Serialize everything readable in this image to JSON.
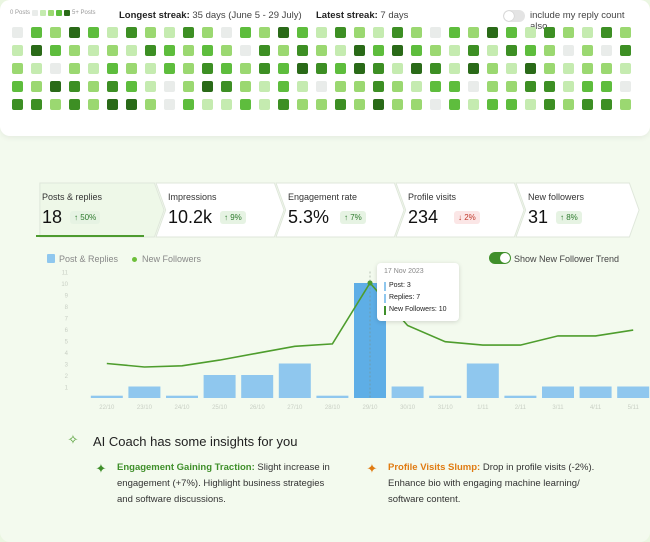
{
  "heatmap": {
    "legend_min": "0 Posts",
    "legend_max": "5+ Posts",
    "longest_label": "Longest streak:",
    "longest_value": "35 days (June 5 - 29 July)",
    "latest_label": "Latest streak:",
    "latest_value": "7 days",
    "reply_label": "include my reply count also",
    "colors": [
      "#e9ecea",
      "#c5ebb0",
      "#9bd871",
      "#5ebd3d",
      "#3d8f24",
      "#2a6a18"
    ]
  },
  "stats": [
    {
      "label": "Posts & replies",
      "value": "18",
      "change": "↑ 50%",
      "trend": "up"
    },
    {
      "label": "Impressions",
      "value": "10.2k",
      "change": "↑ 9%",
      "trend": "up"
    },
    {
      "label": "Engagement  rate",
      "value": "5.3%",
      "change": "↑ 7%",
      "trend": "up"
    },
    {
      "label": "Profile visits",
      "value": "234",
      "change": "↓ 2%",
      "trend": "down"
    },
    {
      "label": "New followers",
      "value": "31",
      "change": "↑ 8%",
      "trend": "up"
    }
  ],
  "chart_legend": {
    "bars": "Post & Replies",
    "line": "New Followers",
    "trend_toggle": "Show New Follower Trend"
  },
  "chart_data": {
    "type": "bar",
    "ylim": [
      0,
      11
    ],
    "y_ticks": [
      "1",
      "2",
      "3",
      "4",
      "5",
      "6",
      "7",
      "8",
      "9",
      "10",
      "11"
    ],
    "categories": [
      "22/10",
      "23/10",
      "24/10",
      "25/10",
      "26/10",
      "27/10",
      "28/10",
      "29/10",
      "30/10",
      "31/10",
      "1/11",
      "2/11",
      "3/11",
      "4/11",
      "5/11"
    ],
    "series": [
      {
        "name": "Post & Replies",
        "type": "bar",
        "values": [
          0.2,
          1,
          0.2,
          2,
          2,
          3,
          0.2,
          10,
          1,
          0.2,
          3,
          0.2,
          1,
          1,
          1
        ]
      },
      {
        "name": "New Followers",
        "type": "line",
        "values": [
          3,
          2.7,
          2.8,
          3.3,
          3.9,
          4.5,
          4.7,
          10,
          6.3,
          4.9,
          4.6,
          4.6,
          5.4,
          5.4,
          5.9
        ]
      }
    ],
    "colors": {
      "bar": "#8fc7ee",
      "line": "#4e9d2d",
      "highlight_bar": "#5eaee6"
    }
  },
  "tooltip": {
    "date": "17 Nov 2023",
    "post": "Post: 3",
    "replies": "Replies: 7",
    "followers": "New Followers: 10"
  },
  "coach": {
    "title": "AI Coach has some insights for you",
    "insights": [
      {
        "title": "Engagement Gaining Traction:",
        "text": "Slight increase in",
        "line2": "engagement (+7%). Highlight business strategies",
        "line3": "and software discussions.",
        "color": "#3f8f2a"
      },
      {
        "title": "Profile Visits Slump:",
        "text": "Drop in profile visits (-2%).",
        "line2": "Enhance bio with engaging machine learning/",
        "line3": "software content.",
        "color": "#e07b12"
      }
    ]
  }
}
